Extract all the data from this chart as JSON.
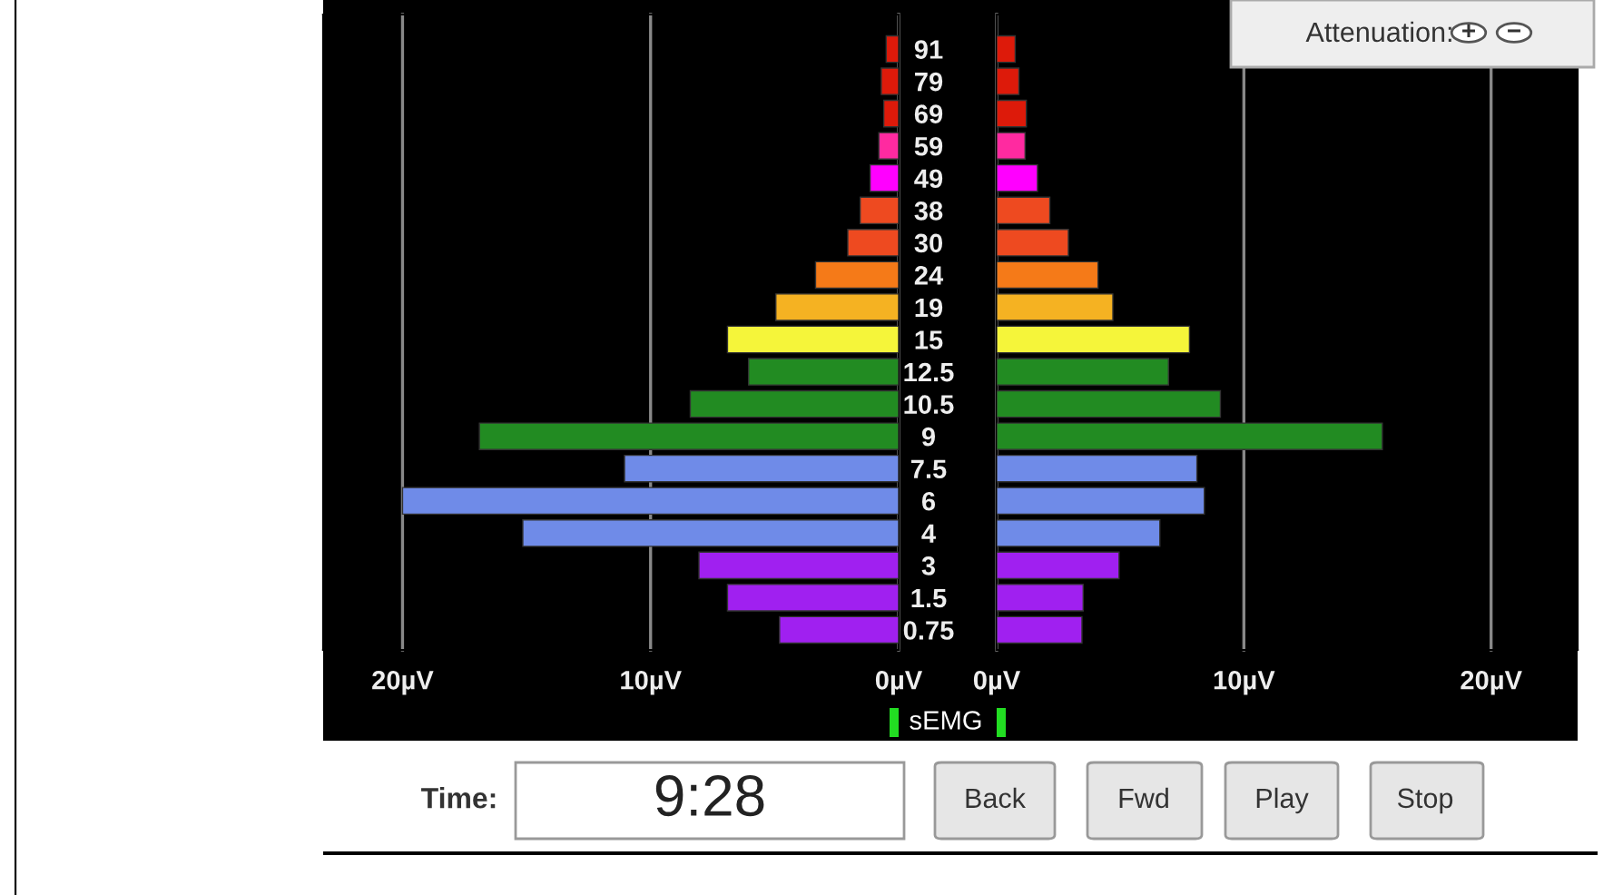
{
  "chart_data": [
    {
      "type": "bar",
      "orientation": "horizontal",
      "categories": [
        "91",
        "79",
        "69",
        "59",
        "49",
        "38",
        "30",
        "24",
        "19",
        "15",
        "12.5",
        "10.5",
        "9",
        "7.5",
        "6",
        "4",
        "3",
        "1.5",
        "0.75"
      ],
      "values": [
        0.5,
        0.7,
        0.6,
        0.8,
        1.15,
        1.55,
        2.05,
        3.35,
        4.95,
        6.9,
        6.05,
        8.4,
        16.9,
        11.05,
        20.0,
        15.15,
        8.05,
        6.9,
        4.8
      ],
      "colors": [
        "#dd1a0a",
        "#dd1a0a",
        "#dd1a0a",
        "#ff2aa0",
        "#ff00ff",
        "#ee4a20",
        "#ee4a20",
        "#f57a18",
        "#f5b222",
        "#f5f53a",
        "#228b22",
        "#228b22",
        "#228b22",
        "#6f8be8",
        "#6f8be8",
        "#6f8be8",
        "#a020f0",
        "#a020f0",
        "#a020f0"
      ],
      "xlim": [
        23.2,
        0
      ],
      "xticks": [
        {
          "value": 20,
          "label": "20µV"
        },
        {
          "value": 10,
          "label": "10µV"
        },
        {
          "value": 0,
          "label": "0µV"
        }
      ],
      "grid": "x",
      "tick_labels": "x"
    },
    {
      "type": "bar",
      "orientation": "horizontal",
      "categories": [
        "91",
        "79",
        "69",
        "59",
        "49",
        "38",
        "30",
        "24",
        "19",
        "15",
        "12.5",
        "10.5",
        "9",
        "7.5",
        "6",
        "4",
        "3",
        "1.5",
        "0.75"
      ],
      "values": [
        0.75,
        0.9,
        1.2,
        1.15,
        1.65,
        2.15,
        2.9,
        4.1,
        4.7,
        7.8,
        6.95,
        9.05,
        15.6,
        8.1,
        8.4,
        6.6,
        4.95,
        3.5,
        3.45
      ],
      "colors": [
        "#dd1a0a",
        "#dd1a0a",
        "#dd1a0a",
        "#ff2aa0",
        "#ff00ff",
        "#ee4a20",
        "#ee4a20",
        "#f57a18",
        "#f5b222",
        "#f5f53a",
        "#228b22",
        "#228b22",
        "#228b22",
        "#6f8be8",
        "#6f8be8",
        "#6f8be8",
        "#a020f0",
        "#a020f0",
        "#a020f0"
      ],
      "xlim": [
        0,
        23.5
      ],
      "xticks": [
        {
          "value": 0,
          "label": "0µV"
        },
        {
          "value": 10,
          "label": "10µV"
        },
        {
          "value": 20,
          "label": "20µV"
        }
      ],
      "grid": "x"
    },
    {
      "type": "other",
      "annotations": [
        "sEMG",
        "Attenuation:",
        "+",
        "−",
        "Time:",
        "9:28",
        "Back",
        "Fwd",
        "Play",
        "Stop"
      ]
    }
  ]
}
